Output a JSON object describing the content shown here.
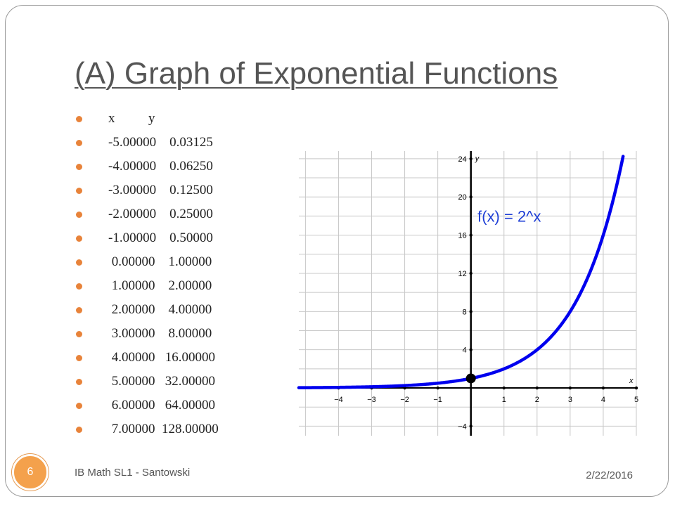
{
  "slide": {
    "title": "(A) Graph of Exponential Functions",
    "table_header": "x          y",
    "rows": [
      "-5.00000    0.03125",
      "-4.00000    0.06250",
      "-3.00000    0.12500",
      "-2.00000    0.25000",
      "-1.00000    0.50000",
      " 0.00000    1.00000",
      " 1.00000    2.00000",
      " 2.00000    4.00000",
      " 3.00000    8.00000",
      " 4.00000   16.00000",
      " 5.00000   32.00000",
      " 6.00000   64.00000",
      " 7.00000  128.00000"
    ],
    "footer_course": "IB Math SL1 - Santowski",
    "footer_date": "2/22/2016",
    "slide_number": "6"
  },
  "colors": {
    "accent": "#f4a14c",
    "curve": "#0000ee",
    "title": "#555555"
  },
  "chart_data": {
    "type": "line",
    "title": "",
    "annotation": "f(x) = 2^x",
    "xlabel": "x",
    "ylabel": "y",
    "xlim": [
      -5.2,
      5
    ],
    "ylim": [
      -5,
      24.8
    ],
    "xticks": [
      -4,
      -3,
      -2,
      -1,
      1,
      2,
      3,
      4,
      5
    ],
    "xtick_labels": [
      "−4",
      "−3",
      "−2",
      "−1",
      "1",
      "2",
      "3",
      "4",
      "5"
    ],
    "yticks": [
      -4,
      4,
      8,
      12,
      16,
      20,
      24
    ],
    "ytick_labels": [
      "−4",
      "4",
      "8",
      "12",
      "16",
      "20",
      "24"
    ],
    "grid": true,
    "series": [
      {
        "function": "2^x",
        "x": [
          -5,
          -4,
          -3,
          -2,
          -1,
          0,
          1,
          2,
          3,
          4,
          4.6
        ],
        "y": [
          0.03125,
          0.0625,
          0.125,
          0.25,
          0.5,
          1,
          2,
          4,
          8,
          16,
          24.25
        ]
      }
    ],
    "highlight_point": {
      "x": 0,
      "y": 1
    }
  }
}
